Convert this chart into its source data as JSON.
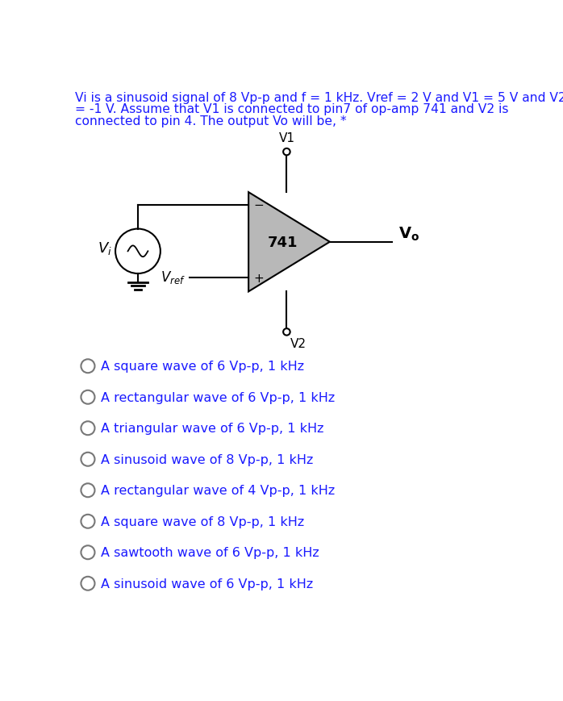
{
  "text_color": "#1a1aff",
  "bg_color": "#ffffff",
  "circuit_color": "#000000",
  "opamp_fill": "#b8b8b8",
  "title_lines": [
    "Vi is a sinusoid signal of 8 Vp-p and f = 1 kHz. Vref = 2 V and V1 = 5 V and V2",
    "= -1 V. Assume that V1 is connected to pin7 of op-amp 741 and V2 is",
    "connected to pin 4. The output Vo will be, *"
  ],
  "options": [
    "A square wave of 6 Vp-p, 1 kHz",
    "A rectangular wave of 6 Vp-p, 1 kHz",
    "A triangular wave of 6 Vp-p, 1 kHz",
    "A sinusoid wave of 8 Vp-p, 1 kHz",
    "A rectangular wave of 4 Vp-p, 1 kHz",
    "A square wave of 8 Vp-p, 1 kHz",
    "A sawtooth wave of 6 Vp-p, 1 kHz",
    "A sinusoid wave of 6 Vp-p, 1 kHz"
  ],
  "title_fontsize": 11.2,
  "option_fontsize": 11.5
}
